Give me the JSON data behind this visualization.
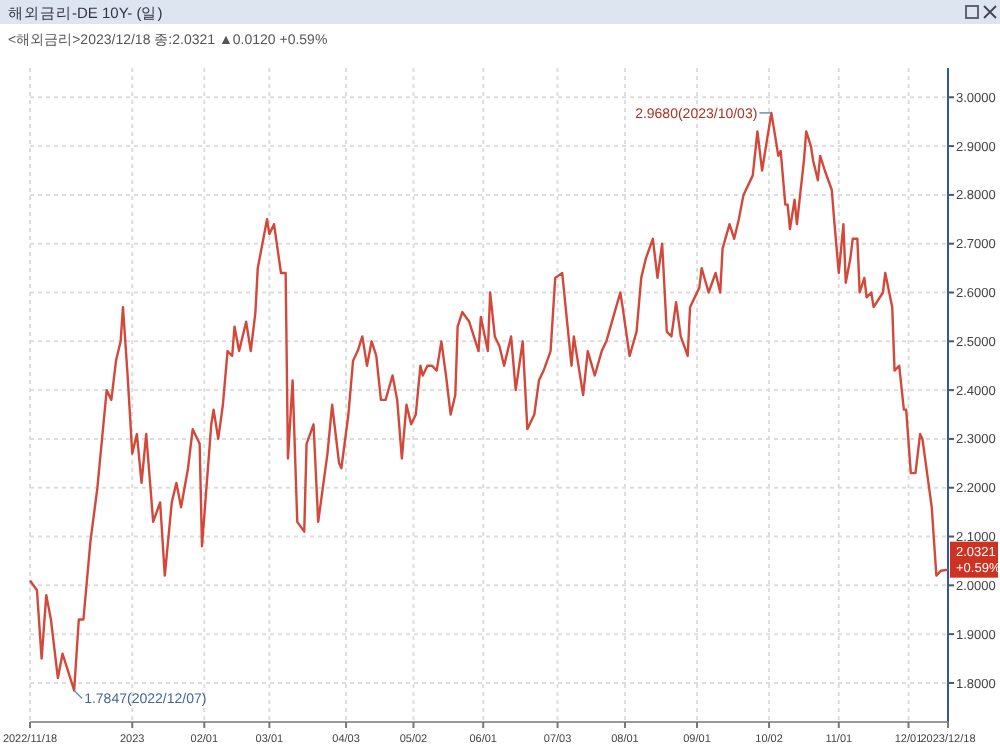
{
  "chart_data": {
    "type": "line",
    "title": "해외금리-DE  10Y- (일)",
    "subtitle": "<해외금리>2023/12/18 종:2.0321 ▲0.0120 +0.59%",
    "x": [
      "2022-11-18",
      "2022-11-21",
      "2022-11-23",
      "2022-11-25",
      "2022-11-27",
      "2022-11-30",
      "2022-12-02",
      "2022-12-07",
      "2022-12-09",
      "2022-12-11",
      "2022-12-14",
      "2022-12-17",
      "2022-12-19",
      "2022-12-21",
      "2022-12-23",
      "2022-12-25",
      "2022-12-27",
      "2022-12-28",
      "2022-12-30",
      "2023-01-01",
      "2023-01-03",
      "2023-01-05",
      "2023-01-07",
      "2023-01-09",
      "2023-01-10",
      "2023-01-13",
      "2023-01-15",
      "2023-01-18",
      "2023-01-20",
      "2023-01-22",
      "2023-01-25",
      "2023-01-27",
      "2023-01-30",
      "2023-01-31",
      "2023-02-04",
      "2023-02-05",
      "2023-02-07",
      "2023-02-09",
      "2023-02-11",
      "2023-02-13",
      "2023-02-14",
      "2023-02-16",
      "2023-02-19",
      "2023-02-21",
      "2023-02-23",
      "2023-02-24",
      "2023-02-28",
      "2023-03-01",
      "2023-03-03",
      "2023-03-06",
      "2023-03-08",
      "2023-03-09",
      "2023-03-11",
      "2023-03-13",
      "2023-03-16",
      "2023-03-17",
      "2023-03-20",
      "2023-03-22",
      "2023-03-26",
      "2023-03-28",
      "2023-03-31",
      "2023-04-01",
      "2023-04-04",
      "2023-04-06",
      "2023-04-08",
      "2023-04-10",
      "2023-04-12",
      "2023-04-14",
      "2023-04-16",
      "2023-04-18",
      "2023-04-20",
      "2023-04-23",
      "2023-04-25",
      "2023-04-27",
      "2023-04-29",
      "2023-05-01",
      "2023-05-03",
      "2023-05-05",
      "2023-05-06",
      "2023-05-08",
      "2023-05-10",
      "2023-05-12",
      "2023-05-14",
      "2023-05-16",
      "2023-05-18",
      "2023-05-20",
      "2023-05-21",
      "2023-05-23",
      "2023-05-26",
      "2023-05-30",
      "2023-05-31",
      "2023-06-03",
      "2023-06-04",
      "2023-06-06",
      "2023-06-08",
      "2023-06-10",
      "2023-06-13",
      "2023-06-15",
      "2023-06-18",
      "2023-06-20",
      "2023-06-23",
      "2023-06-25",
      "2023-06-27",
      "2023-06-30",
      "2023-07-02",
      "2023-07-05",
      "2023-07-09",
      "2023-07-10",
      "2023-07-14",
      "2023-07-16",
      "2023-07-19",
      "2023-07-22",
      "2023-07-24",
      "2023-07-27",
      "2023-07-30",
      "2023-07-31",
      "2023-08-03",
      "2023-08-06",
      "2023-08-08",
      "2023-08-10",
      "2023-08-13",
      "2023-08-15",
      "2023-08-17",
      "2023-08-19",
      "2023-08-21",
      "2023-08-23",
      "2023-08-25",
      "2023-08-28",
      "2023-08-29",
      "2023-09-02",
      "2023-09-03",
      "2023-09-06",
      "2023-09-09",
      "2023-09-11",
      "2023-09-12",
      "2023-09-15",
      "2023-09-17",
      "2023-09-19",
      "2023-09-21",
      "2023-09-25",
      "2023-09-27",
      "2023-09-29",
      "2023-10-03",
      "2023-10-06",
      "2023-10-07",
      "2023-10-09",
      "2023-10-10",
      "2023-10-11",
      "2023-10-13",
      "2023-10-14",
      "2023-10-17",
      "2023-10-18",
      "2023-10-20",
      "2023-10-21",
      "2023-10-23",
      "2023-10-24",
      "2023-10-26",
      "2023-10-29",
      "2023-10-30",
      "2023-11-01",
      "2023-11-03",
      "2023-11-04",
      "2023-11-06",
      "2023-11-07",
      "2023-11-09",
      "2023-11-10",
      "2023-11-12",
      "2023-11-13",
      "2023-11-15",
      "2023-11-16",
      "2023-11-20",
      "2023-11-21",
      "2023-11-24",
      "2023-11-25",
      "2023-11-27",
      "2023-11-29",
      "2023-11-30",
      "2023-12-02",
      "2023-12-04",
      "2023-12-06",
      "2023-12-07",
      "2023-12-11",
      "2023-12-13",
      "2023-12-15",
      "2023-12-18"
    ],
    "series": [
      {
        "color": "#d2493c",
        "values": [
          2.01,
          1.99,
          1.85,
          1.98,
          1.93,
          1.81,
          1.86,
          1.7847,
          1.93,
          1.93,
          2.09,
          2.2,
          2.3,
          2.4,
          2.38,
          2.46,
          2.5,
          2.57,
          2.43,
          2.27,
          2.31,
          2.21,
          2.31,
          2.19,
          2.13,
          2.17,
          2.02,
          2.17,
          2.21,
          2.16,
          2.24,
          2.32,
          2.29,
          2.08,
          2.33,
          2.36,
          2.3,
          2.37,
          2.48,
          2.47,
          2.53,
          2.48,
          2.54,
          2.48,
          2.56,
          2.65,
          2.75,
          2.72,
          2.74,
          2.64,
          2.64,
          2.26,
          2.42,
          2.13,
          2.11,
          2.29,
          2.33,
          2.13,
          2.27,
          2.37,
          2.25,
          2.24,
          2.35,
          2.46,
          2.48,
          2.51,
          2.45,
          2.5,
          2.47,
          2.38,
          2.38,
          2.43,
          2.38,
          2.26,
          2.37,
          2.33,
          2.35,
          2.45,
          2.43,
          2.45,
          2.45,
          2.44,
          2.5,
          2.43,
          2.35,
          2.39,
          2.53,
          2.56,
          2.54,
          2.48,
          2.55,
          2.48,
          2.6,
          2.51,
          2.49,
          2.45,
          2.51,
          2.4,
          2.5,
          2.32,
          2.35,
          2.42,
          2.44,
          2.48,
          2.63,
          2.64,
          2.45,
          2.51,
          2.39,
          2.48,
          2.43,
          2.48,
          2.5,
          2.55,
          2.6,
          2.57,
          2.47,
          2.52,
          2.63,
          2.67,
          2.71,
          2.63,
          2.7,
          2.52,
          2.51,
          2.58,
          2.51,
          2.47,
          2.57,
          2.61,
          2.65,
          2.6,
          2.64,
          2.6,
          2.69,
          2.74,
          2.71,
          2.75,
          2.8,
          2.84,
          2.93,
          2.85,
          2.968,
          2.88,
          2.89,
          2.78,
          2.78,
          2.73,
          2.79,
          2.74,
          2.87,
          2.93,
          2.9,
          2.87,
          2.83,
          2.88,
          2.85,
          2.81,
          2.75,
          2.64,
          2.74,
          2.62,
          2.67,
          2.71,
          2.71,
          2.6,
          2.63,
          2.59,
          2.6,
          2.57,
          2.6,
          2.64,
          2.57,
          2.44,
          2.45,
          2.36,
          2.36,
          2.23,
          2.23,
          2.31,
          2.3,
          2.16,
          2.02,
          2.03,
          2.0321
        ]
      }
    ],
    "xlim": [
      "2022-11-18",
      "2023-12-18"
    ],
    "xticks": [
      {
        "value": "2022-11-18",
        "label": "2022/11/18"
      },
      {
        "value": "2023-01-01",
        "label": "2023"
      },
      {
        "value": "2023-02-01",
        "label": "02/01"
      },
      {
        "value": "2023-03-01",
        "label": "03/01"
      },
      {
        "value": "2023-04-03",
        "label": "04/03"
      },
      {
        "value": "2023-05-02",
        "label": "05/02"
      },
      {
        "value": "2023-06-01",
        "label": "06/01"
      },
      {
        "value": "2023-07-03",
        "label": "07/03"
      },
      {
        "value": "2023-08-01",
        "label": "08/01"
      },
      {
        "value": "2023-09-01",
        "label": "09/01"
      },
      {
        "value": "2023-10-02",
        "label": "10/02"
      },
      {
        "value": "2023-11-01",
        "label": "11/01"
      },
      {
        "value": "2023-12-01",
        "label": "12/01"
      },
      {
        "value": "2023-12-18",
        "label": "2023/12/18"
      }
    ],
    "ylim": [
      1.72,
      3.06
    ],
    "yticks": [
      {
        "value": 1.8,
        "label": "1.8000"
      },
      {
        "value": 1.9,
        "label": "1.9000"
      },
      {
        "value": 2,
        "label": "2.0000"
      },
      {
        "value": 2.1,
        "label": "2.1000"
      },
      {
        "value": 2.2,
        "label": "2.2000"
      },
      {
        "value": 2.3,
        "label": "2.3000"
      },
      {
        "value": 2.4,
        "label": "2.4000"
      },
      {
        "value": 2.5,
        "label": "2.5000"
      },
      {
        "value": 2.6,
        "label": "2.6000"
      },
      {
        "value": 2.7,
        "label": "2.7000"
      },
      {
        "value": 2.8,
        "label": "2.8000"
      },
      {
        "value": 2.9,
        "label": "2.9000"
      },
      {
        "value": 3,
        "label": "3.0000"
      }
    ],
    "grid": true,
    "legend": false,
    "marker": "none",
    "line_style": "solid",
    "annotations": [
      {
        "text": "1.7847(2022/12/07)",
        "x": "2022-12-07",
        "y": 1.7847
      },
      {
        "text": "2.9680(2023/10/03)",
        "x": "2023-10-03",
        "y": 2.968
      },
      {
        "text": "2.0321 +0.59%",
        "x": "2023-12-18",
        "y": 2.0321
      }
    ]
  }
}
